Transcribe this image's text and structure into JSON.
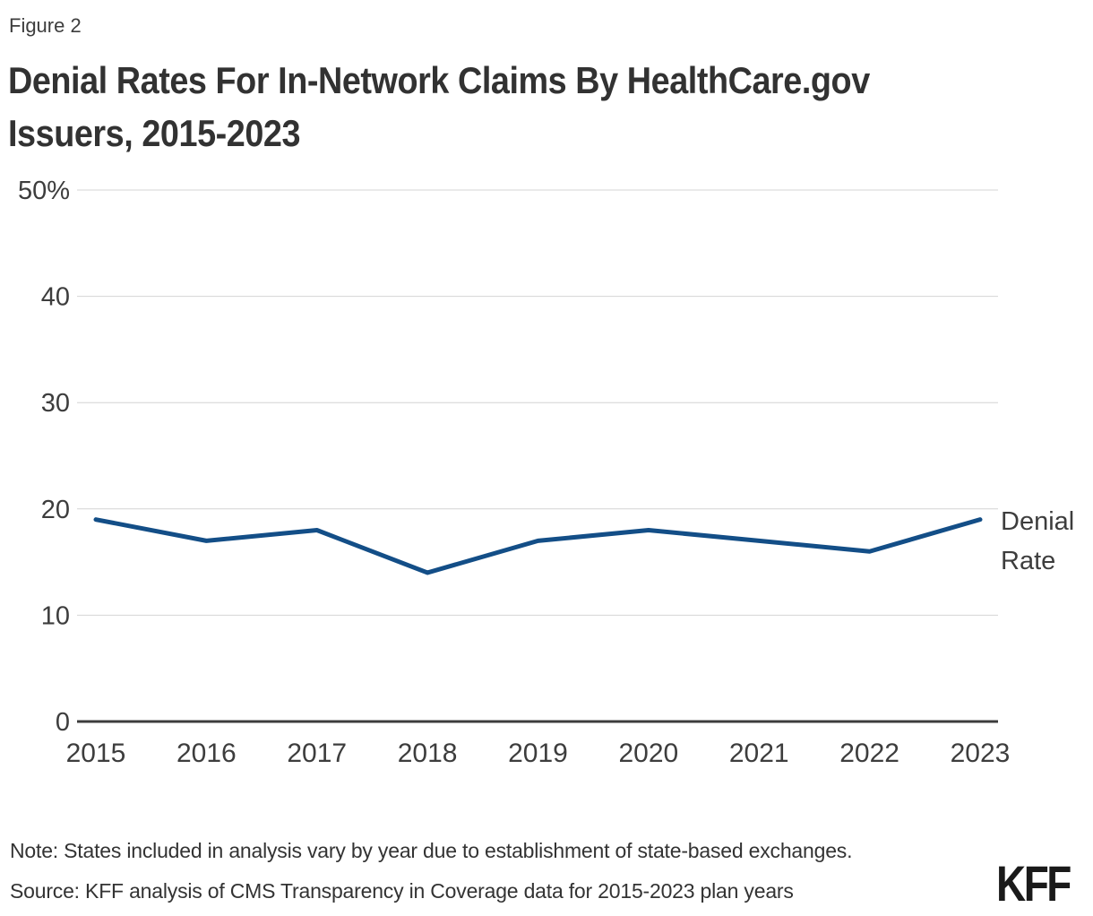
{
  "figure_label": "Figure 2",
  "title_lines": [
    "Denial Rates For In-Network Claims By HealthCare.gov",
    "Issuers, 2015-2023"
  ],
  "series_label": "Denial Rate",
  "note": "Note: States included in analysis vary by year due to establishment of state-based exchanges.",
  "source": "Source: KFF analysis of CMS Transparency in Coverage data for 2015-2023 plan years",
  "logo_text": "KFF",
  "colors": {
    "line": "#134e87",
    "axis": "#3c3c3c",
    "grid": "#d4d4d4",
    "tick_text": "#3d3d3d",
    "body_text": "#333333"
  },
  "chart_data": {
    "type": "line",
    "title": "Denial Rates For In-Network Claims By HealthCare.gov Issuers, 2015-2023",
    "categories": [
      "2015",
      "2016",
      "2017",
      "2018",
      "2019",
      "2020",
      "2021",
      "2022",
      "2023"
    ],
    "series": [
      {
        "name": "Denial Rate",
        "values": [
          19,
          17,
          18,
          14,
          17,
          18,
          17,
          16,
          19
        ]
      }
    ],
    "unit": "percent",
    "ylim": [
      0,
      50
    ],
    "yticks": [
      0,
      10,
      20,
      30,
      40,
      50
    ],
    "ytick_labels": [
      "0",
      "10",
      "20",
      "30",
      "40",
      "50%"
    ],
    "xlabel": "",
    "ylabel": "",
    "grid": "horizontal",
    "legend_position": "right-of-line-end"
  }
}
